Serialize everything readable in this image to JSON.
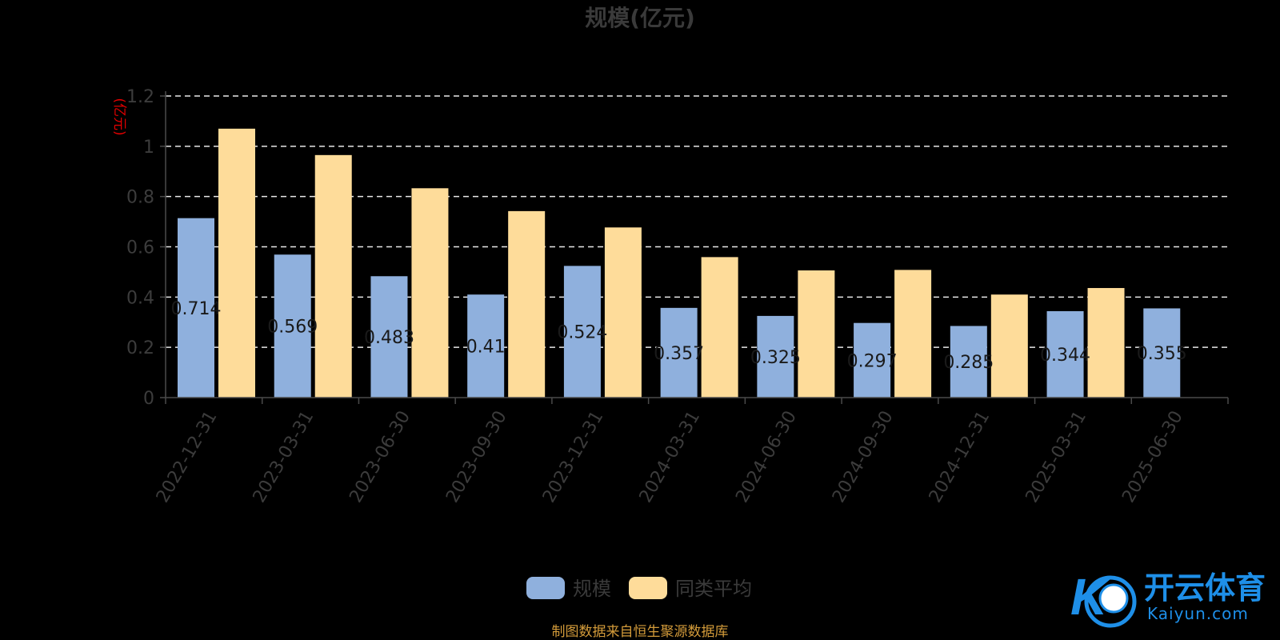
{
  "chart_data": {
    "type": "bar",
    "title": "规模(亿元)",
    "unit_label": "(亿元)",
    "categories": [
      "2022-12-31",
      "2023-03-31",
      "2023-06-30",
      "2023-09-30",
      "2023-12-31",
      "2024-03-31",
      "2024-06-30",
      "2024-09-30",
      "2024-12-31",
      "2025-03-31",
      "2025-06-30"
    ],
    "series": [
      {
        "name": "规模",
        "color": "#8fb0dd",
        "values": [
          0.714,
          0.569,
          0.483,
          0.41,
          0.524,
          0.357,
          0.325,
          0.297,
          0.285,
          0.344,
          0.355
        ],
        "labels": [
          "0.714",
          "0.569",
          "0.483",
          "0.41",
          "0.524",
          "0.357",
          "0.325",
          "0.297",
          "0.285",
          "0.344",
          "0.355"
        ]
      },
      {
        "name": "同类平均",
        "color": "#fedc9a",
        "values": [
          1.07,
          0.965,
          0.833,
          0.742,
          0.677,
          0.559,
          0.506,
          0.508,
          0.41,
          0.436,
          null
        ]
      }
    ],
    "ylim": [
      0,
      1.2
    ],
    "yticks": [
      "0",
      "0.2",
      "0.4",
      "0.6",
      "0.8",
      "1",
      "1.2"
    ],
    "ytick_values": [
      0,
      0.2,
      0.4,
      0.6,
      0.8,
      1,
      1.2
    ],
    "grid": "dashed horizontal",
    "legend_position": "bottom-center"
  },
  "footer": {
    "source": "制图数据来自恒生聚源数据库"
  },
  "watermark": {
    "brand_cn": "开云体育",
    "brand_en": "Kaiyun.com",
    "logo_glyph": "K"
  },
  "colors": {
    "axis": "#4a4a4a",
    "grid": "#e8e8e8",
    "brand": "#1e8fe8"
  }
}
